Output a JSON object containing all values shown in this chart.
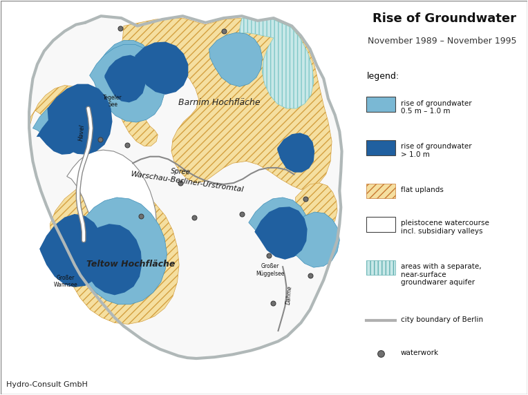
{
  "title": "Rise of Groundwater",
  "subtitle": "November 1989 – November 1995",
  "credit": "Hydro-Consult GmbH",
  "figsize": [
    7.64,
    5.72
  ],
  "dpi": 100,
  "bg_color": "#ffffff",
  "legend": {
    "items": [
      {
        "label": "rise of groundwater\n0.5 m – 1.0 m",
        "color": "#7ab8d4",
        "type": "rect"
      },
      {
        "label": "rise of groundwater\n> 1.0 m",
        "color": "#2060a0",
        "type": "rect"
      },
      {
        "label": "flat uplands",
        "color": "#f5dfa0",
        "hatch": "///",
        "type": "hatch"
      },
      {
        "label": "pleistocene watercourse\nincl. subsidiary valleys",
        "color": "#ffffff",
        "type": "rect_outline"
      },
      {
        "label": "areas with a separate,\nnear-surface\ngroundwarer aquifer",
        "color": "#c8e8e8",
        "hatch": "|||",
        "type": "hatch2"
      },
      {
        "label": "city boundary of Berlin",
        "color": "#b0b0b0",
        "type": "line"
      },
      {
        "label": "waterwork",
        "color": "#707070",
        "type": "circle"
      }
    ]
  },
  "colors": {
    "light_blue": "#7ab8d4",
    "dark_blue": "#2060a0",
    "upland_fill": "#f5dfa0",
    "upland_hatch": "#d4a040",
    "aquifer_fill": "#c8e8e8",
    "aquifer_hatch": "#80c8c8",
    "valley_fill": "#ffffff",
    "boundary_color": "#b0b8b8",
    "boundary_lw": 3.0,
    "inner_line_color": "#404040",
    "waterwork_color": "#707070",
    "text_color": "#000000"
  }
}
